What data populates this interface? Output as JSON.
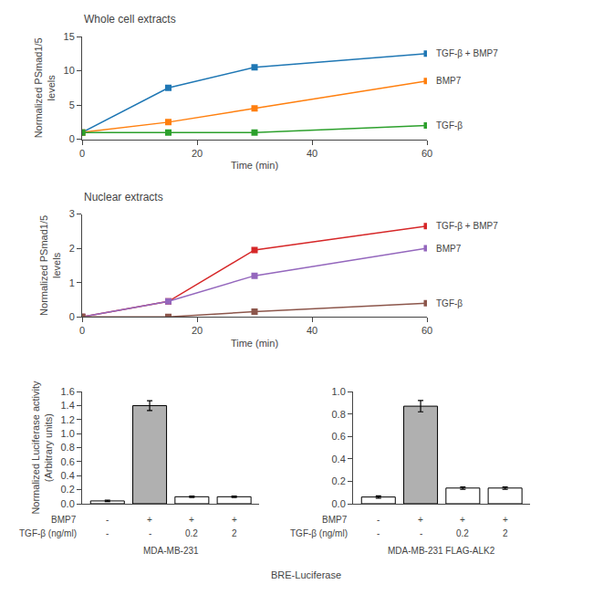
{
  "chart_data": [
    {
      "type": "line",
      "title": "Whole cell extracts",
      "x": [
        0,
        15,
        30,
        60
      ],
      "series": [
        {
          "name": "TGF-β + BMP7",
          "values": [
            1.0,
            7.5,
            10.5,
            12.5
          ]
        },
        {
          "name": "BMP7",
          "values": [
            1.0,
            2.5,
            4.5,
            8.5
          ]
        },
        {
          "name": "TGF-β",
          "values": [
            1.0,
            1.0,
            1.0,
            2.0
          ]
        }
      ],
      "marker": "square",
      "xlabel": "Time (min)",
      "ylabel": "Normalized PSmad1/5\nlevels",
      "xlim": [
        0,
        60
      ],
      "xticks": [
        0,
        20,
        40,
        60
      ],
      "ylim": [
        0,
        15
      ],
      "yticks": [
        0,
        5,
        10,
        15
      ],
      "grid": false
    },
    {
      "type": "line",
      "title": "Nuclear extracts",
      "x": [
        0,
        15,
        30,
        60
      ],
      "series": [
        {
          "name": "TGF-β + BMP7",
          "values": [
            0.0,
            0.45,
            1.95,
            2.65
          ]
        },
        {
          "name": "BMP7",
          "values": [
            0.0,
            0.45,
            1.2,
            2.0
          ]
        },
        {
          "name": "TGF-β",
          "values": [
            0.0,
            0.0,
            0.15,
            0.4
          ]
        }
      ],
      "marker": "square",
      "xlabel": "Time (min)",
      "ylabel": "Normalized PSmad1/5\nlevels",
      "xlim": [
        0,
        60
      ],
      "xticks": [
        0,
        20,
        40,
        60
      ],
      "ylim": [
        0,
        3
      ],
      "yticks": [
        0,
        1,
        2,
        3
      ],
      "grid": false
    },
    {
      "type": "bar",
      "subtitle": "BRE-Luciferase",
      "values": [
        0.04,
        1.4,
        0.1,
        0.1
      ],
      "errors": [
        0.01,
        0.07,
        0.01,
        0.01
      ],
      "colors": [
        "white",
        "#b0b0b0",
        "white",
        "white"
      ],
      "label_rows": [
        {
          "name": "BMP7",
          "labels": [
            "-",
            "+",
            "+",
            "+"
          ]
        },
        {
          "name": "TGF-β (ng/ml)",
          "labels": [
            "-",
            "-",
            "0.2",
            "2"
          ]
        }
      ],
      "xlabel": "MDA-MB-231",
      "ylabel": "Normalized Luciferase activity\n(Arbitrary units)",
      "ylim": [
        0,
        1.6
      ],
      "yticks": [
        {
          "value": 0.0,
          "label": "0.0"
        },
        0.2,
        0.4,
        0.6,
        0.8,
        {
          "value": 1.0,
          "label": "1.0"
        },
        1.2,
        1.4,
        1.6
      ],
      "grid": false,
      "tick_labels": "y"
    },
    {
      "type": "bar",
      "values": [
        0.06,
        0.87,
        0.14,
        0.14
      ],
      "errors": [
        0.01,
        0.05,
        0.01,
        0.01
      ],
      "colors": [
        "white",
        "#b0b0b0",
        "white",
        "white"
      ],
      "label_rows": [
        {
          "name": "BMP7",
          "labels": [
            "-",
            "+",
            "+",
            "+"
          ]
        },
        {
          "name": "TGF-β (ng/ml)",
          "labels": [
            "-",
            "-",
            "0.2",
            "2"
          ]
        }
      ],
      "xlabel": "MDA-MB-231 FLAG-ALK2",
      "ylim": [
        0,
        1.0
      ],
      "yticks": [
        {
          "value": 0.0,
          "label": "0.0"
        },
        0.2,
        0.4,
        0.6,
        0.8,
        {
          "value": 1.0,
          "label": "1.0"
        }
      ],
      "grid": false,
      "tick_labels": "y"
    }
  ]
}
